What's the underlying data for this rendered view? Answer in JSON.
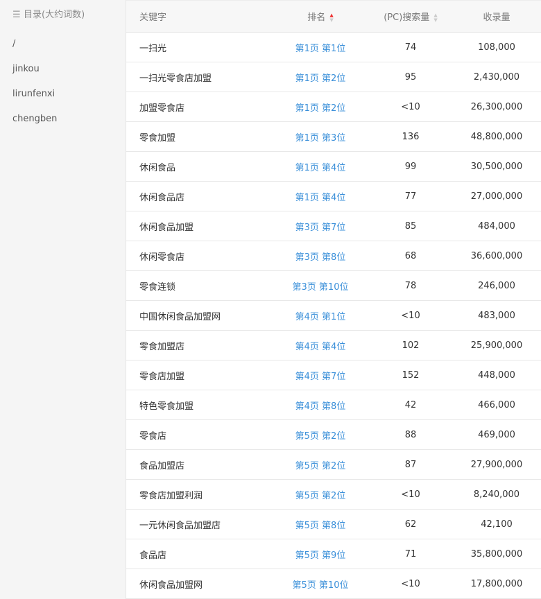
{
  "sidebar": {
    "title": "目录(大约词数)",
    "icon": "list-icon",
    "items": [
      {
        "label": "/"
      },
      {
        "label": "jinkou"
      },
      {
        "label": "lirunfenxi"
      },
      {
        "label": "chengben"
      }
    ]
  },
  "table": {
    "headers": {
      "keyword": "关键字",
      "rank": "排名",
      "search": "(PC)搜索量",
      "indexed": "收录量"
    },
    "sort": {
      "column": "rank",
      "direction": "ascending"
    },
    "accent_color": "#3a8fd9",
    "rows": [
      {
        "keyword": "一扫光",
        "rank": "第1页 第1位",
        "search": "74",
        "indexed": "108,000"
      },
      {
        "keyword": "一扫光零食店加盟",
        "rank": "第1页 第2位",
        "search": "95",
        "indexed": "2,430,000"
      },
      {
        "keyword": "加盟零食店",
        "rank": "第1页 第2位",
        "search": "<10",
        "indexed": "26,300,000"
      },
      {
        "keyword": "零食加盟",
        "rank": "第1页 第3位",
        "search": "136",
        "indexed": "48,800,000"
      },
      {
        "keyword": "休闲食品",
        "rank": "第1页 第4位",
        "search": "99",
        "indexed": "30,500,000"
      },
      {
        "keyword": "休闲食品店",
        "rank": "第1页 第4位",
        "search": "77",
        "indexed": "27,000,000"
      },
      {
        "keyword": "休闲食品加盟",
        "rank": "第3页 第7位",
        "search": "85",
        "indexed": "484,000"
      },
      {
        "keyword": "休闲零食店",
        "rank": "第3页 第8位",
        "search": "68",
        "indexed": "36,600,000"
      },
      {
        "keyword": "零食连锁",
        "rank": "第3页 第10位",
        "search": "78",
        "indexed": "246,000"
      },
      {
        "keyword": "中国休闲食品加盟网",
        "rank": "第4页 第1位",
        "search": "<10",
        "indexed": "483,000"
      },
      {
        "keyword": "零食加盟店",
        "rank": "第4页 第4位",
        "search": "102",
        "indexed": "25,900,000"
      },
      {
        "keyword": "零食店加盟",
        "rank": "第4页 第7位",
        "search": "152",
        "indexed": "448,000"
      },
      {
        "keyword": "特色零食加盟",
        "rank": "第4页 第8位",
        "search": "42",
        "indexed": "466,000"
      },
      {
        "keyword": "零食店",
        "rank": "第5页 第2位",
        "search": "88",
        "indexed": "469,000"
      },
      {
        "keyword": "食品加盟店",
        "rank": "第5页 第2位",
        "search": "87",
        "indexed": "27,900,000"
      },
      {
        "keyword": "零食店加盟利润",
        "rank": "第5页 第2位",
        "search": "<10",
        "indexed": "8,240,000"
      },
      {
        "keyword": "一元休闲食品加盟店",
        "rank": "第5页 第8位",
        "search": "62",
        "indexed": "42,100"
      },
      {
        "keyword": "食品店",
        "rank": "第5页 第9位",
        "search": "71",
        "indexed": "35,800,000"
      },
      {
        "keyword": "休闲食品加盟网",
        "rank": "第5页 第10位",
        "search": "<10",
        "indexed": "17,800,000"
      }
    ]
  }
}
